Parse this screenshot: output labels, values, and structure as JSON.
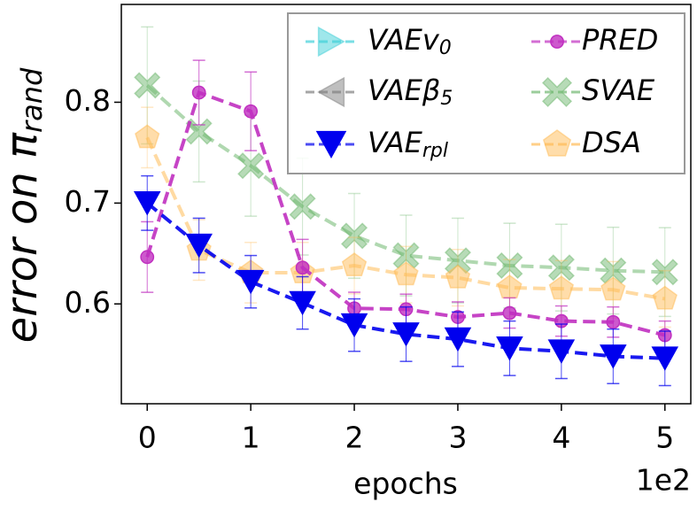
{
  "chart_data": {
    "type": "line",
    "x_label": "epochs",
    "x_offset_label": "1e2",
    "y_label": {
      "text": "error on π",
      "subscript": "rand"
    },
    "x": [
      0,
      0.5,
      1,
      1.5,
      2,
      2.5,
      3,
      3.5,
      4,
      4.5,
      5
    ],
    "xlim": [
      -0.25,
      5.25
    ],
    "xticks": [
      0,
      1,
      2,
      3,
      4,
      5
    ],
    "ylim": [
      0.501,
      0.897
    ],
    "yticks": [
      0.6,
      0.7,
      0.8
    ],
    "legend": "upper right",
    "series": [
      {
        "name": "VAEv",
        "name_subscript": "0",
        "color": "#40d0d8",
        "marker": "triangle-right",
        "values": [
          null,
          null,
          null,
          null,
          null,
          null,
          null,
          null,
          null,
          null,
          null
        ],
        "errors": [
          null,
          null,
          null,
          null,
          null,
          null,
          null,
          null,
          null,
          null,
          null
        ]
      },
      {
        "name": "VAEβ",
        "name_subscript": "5",
        "color": "#808080",
        "marker": "triangle-left",
        "values": [
          null,
          null,
          null,
          null,
          null,
          null,
          null,
          null,
          null,
          null,
          null
        ],
        "errors": [
          null,
          null,
          null,
          null,
          null,
          null,
          null,
          null,
          null,
          null,
          null
        ]
      },
      {
        "name": "VAE",
        "name_subscript": "rpl",
        "color": "#0000ee",
        "marker": "triangle-down",
        "values": [
          0.7,
          0.658,
          0.622,
          0.601,
          0.579,
          0.57,
          0.565,
          0.556,
          0.553,
          0.548,
          0.546
        ],
        "errors": [
          0.027,
          0.027,
          0.026,
          0.026,
          0.026,
          0.027,
          0.027,
          0.027,
          0.027,
          0.027,
          0.027
        ]
      },
      {
        "name": "PRED",
        "color": "#c030c0",
        "marker": "circle",
        "values": [
          0.6465,
          0.8096,
          0.791,
          0.636,
          0.5956,
          0.5947,
          0.587,
          0.591,
          0.583,
          0.582,
          0.569
        ],
        "errors": [
          0.035,
          0.032,
          0.039,
          0.028,
          0.016,
          0.015,
          0.015,
          0.015,
          0.015,
          0.015,
          0.014
        ]
      },
      {
        "name": "SVAE",
        "color": "#70b870",
        "marker": "x",
        "values": [
          0.8167,
          0.771,
          0.737,
          0.6965,
          0.6675,
          0.648,
          0.643,
          0.638,
          0.636,
          0.633,
          0.6316
        ],
        "errors": [
          0.058,
          0.05,
          0.05,
          0.048,
          0.042,
          0.04,
          0.042,
          0.042,
          0.043,
          0.043,
          0.044
        ]
      },
      {
        "name": "DSA",
        "color": "#ffbb55",
        "marker": "pentagon",
        "values": [
          0.765,
          0.6535,
          0.631,
          0.631,
          0.638,
          0.629,
          0.626,
          0.616,
          0.615,
          0.614,
          0.605
        ],
        "errors": [
          0.03,
          0.03,
          0.03,
          0.03,
          0.028,
          0.028,
          0.028,
          0.028,
          0.028,
          0.028,
          0.028
        ]
      }
    ]
  }
}
